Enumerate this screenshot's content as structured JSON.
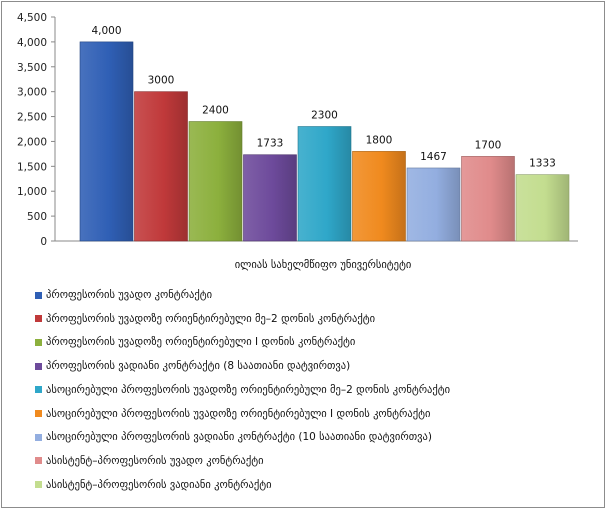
{
  "chart_data": {
    "type": "bar",
    "title": "",
    "xlabel": "",
    "ylabel": "",
    "ylim": [
      0,
      4500
    ],
    "ytick_step": 500,
    "yticks": [
      "0",
      "500",
      "1,000",
      "1,500",
      "2,000",
      "2,500",
      "3,000",
      "3,500",
      "4,000",
      "4,500"
    ],
    "categories": [
      "ილიას სახელმწიფო უნივერსიტეტი"
    ],
    "grid": false,
    "legend_position": "bottom",
    "series": [
      {
        "name": "პროფესორის უვადო კონტრაქტი",
        "values": [
          4000
        ],
        "label": "4,000",
        "color": "#2f5fb5"
      },
      {
        "name": "პროფესორის უვადოზე ორიენტირებული მე–2 დონის კონტრაქტი",
        "values": [
          3000
        ],
        "label": "3000",
        "color": "#c0393a"
      },
      {
        "name": "პროფესორის უვადოზე ორიენტირებული I დონის კონტრაქტი",
        "values": [
          2400
        ],
        "label": "2400",
        "color": "#8cb03d"
      },
      {
        "name": "პროფესორის ვადიანი კონტრაქტი (8 საათიანი დატვირთვა)",
        "values": [
          1733
        ],
        "label": "1733",
        "color": "#6d4a9b"
      },
      {
        "name": "ასოცირებული პროფესორის უვადოზე ორიენტირებული მე–2 დონის კონტრაქტი",
        "values": [
          2300
        ],
        "label": "2300",
        "color": "#2fa7c9"
      },
      {
        "name": "ასოცირებული პროფესორის უვადოზე ორიენტირებული I დონის კონტრაქტი",
        "values": [
          1800
        ],
        "label": "1800",
        "color": "#f08a1e"
      },
      {
        "name": "ასოცირებული პროფესორის ვადიანი კონტრაქტი (10 საათიანი დატვირთვა)",
        "values": [
          1467
        ],
        "label": "1467",
        "color": "#93aee0"
      },
      {
        "name": "ასისტენტ–პროფესორის უვადო კონტრაქტი",
        "values": [
          1700
        ],
        "label": "1700",
        "color": "#e08b8b"
      },
      {
        "name": "ასისტენტ–პროფესორის ვადიანი კონტრაქტი",
        "values": [
          1333
        ],
        "label": "1333",
        "color": "#c3dd8f"
      }
    ]
  }
}
